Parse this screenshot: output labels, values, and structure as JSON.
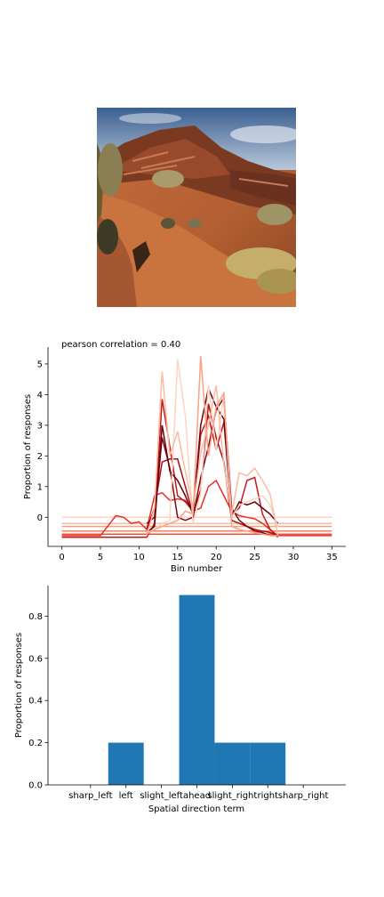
{
  "photo": {
    "subject": "desert-landscape"
  },
  "chart_data": [
    {
      "type": "line",
      "title": "pearson correlation = 0.40",
      "xlabel": "Bin number",
      "ylabel": "Proportion of responses",
      "xlim": [
        -1.8,
        36.8
      ],
      "ylim": [
        -0.95,
        5.55
      ],
      "xticks": [
        0,
        5,
        10,
        15,
        20,
        25,
        30,
        35
      ],
      "yticks": [
        0,
        1,
        2,
        3,
        4,
        5
      ],
      "grid": false,
      "colormap": "Reds",
      "series_colors": [
        "#fdd4c2",
        "#fcbba1",
        "#fca082",
        "#fb8060",
        "#f44f39",
        "#e32f27",
        "#c8171c",
        "#a50f15",
        "#820711",
        "#67000d"
      ],
      "series": [
        {
          "x": [
            0,
            35
          ],
          "y": [
            0,
            0
          ]
        },
        {
          "x": [
            0,
            35
          ],
          "y": [
            -0.2,
            -0.2
          ]
        },
        {
          "x": [
            0,
            35
          ],
          "y": [
            -0.3,
            -0.3
          ]
        },
        {
          "x": [
            0,
            35
          ],
          "y": [
            -0.45,
            -0.45
          ]
        },
        {
          "x": [
            0,
            35
          ],
          "y": [
            -0.55,
            -0.55
          ]
        },
        {
          "x": [
            0,
            5,
            7,
            8,
            9,
            10,
            11,
            12,
            13,
            14,
            15,
            16,
            17,
            18,
            19,
            20,
            21,
            22,
            23,
            24,
            25,
            26,
            27,
            28,
            35
          ],
          "y": [
            -0.6,
            -0.6,
            0.05,
            0.0,
            -0.2,
            -0.15,
            -0.4,
            0.7,
            0.8,
            0.55,
            0.6,
            0.55,
            0.2,
            0.3,
            1.0,
            1.2,
            0.7,
            0.2,
            0.05,
            0.0,
            -0.05,
            -0.2,
            -0.4,
            -0.6,
            -0.6
          ]
        },
        {
          "x": [
            0,
            11,
            12,
            13,
            14,
            15,
            16,
            17,
            18,
            19,
            20,
            21,
            22,
            23,
            24,
            25,
            26,
            27,
            28
          ],
          "y": [
            -0.65,
            -0.65,
            -0.2,
            3.85,
            2.3,
            0.7,
            0.5,
            0.2,
            2.7,
            3.3,
            2.2,
            3.1,
            0.1,
            0.3,
            1.2,
            1.3,
            0.1,
            -0.4,
            -0.65
          ]
        },
        {
          "x": [
            11,
            12,
            13,
            14,
            15,
            16,
            17,
            18,
            19,
            20,
            21,
            22,
            23,
            24,
            25,
            26,
            27,
            28
          ],
          "y": [
            -0.4,
            0.3,
            1.8,
            1.9,
            1.9,
            1.0,
            0.1,
            0.9,
            3.7,
            2.6,
            1.8,
            -0.1,
            -0.2,
            -0.3,
            -0.4,
            -0.45,
            -0.5,
            -0.6
          ]
        },
        {
          "x": [
            11,
            12,
            13,
            14,
            15,
            16,
            17,
            18,
            19,
            20,
            21,
            22,
            23,
            24,
            25,
            26,
            27,
            28
          ],
          "y": [
            -0.2,
            0.0,
            2.6,
            1.6,
            0.0,
            -0.1,
            0.0,
            1.3,
            2.3,
            3.5,
            3.9,
            0.3,
            -0.1,
            -0.3,
            -0.45,
            -0.5,
            -0.6,
            -0.6
          ]
        },
        {
          "x": [
            11,
            12,
            13,
            14,
            15,
            16,
            17,
            18,
            19,
            20,
            21,
            22,
            23,
            24,
            25,
            26,
            27,
            28
          ],
          "y": [
            -0.5,
            -0.3,
            3.0,
            1.5,
            1.2,
            0.7,
            0.1,
            3.0,
            4.2,
            3.6,
            3.2,
            0.0,
            0.5,
            0.4,
            0.5,
            0.3,
            0.1,
            -0.2
          ]
        },
        {
          "x": [
            11,
            12,
            13,
            14,
            15,
            16,
            17,
            18,
            19,
            20,
            21,
            22,
            23,
            24,
            25,
            26,
            27,
            28
          ],
          "y": [
            -0.5,
            -0.4,
            -0.2,
            -0.1,
            5.15,
            3.3,
            -0.2,
            0.8,
            4.3,
            2.2,
            4.0,
            0.0,
            0.4,
            0.5,
            0.6,
            0.7,
            0.4,
            -0.3
          ]
        },
        {
          "x": [
            11,
            12,
            13,
            14,
            15,
            16,
            17,
            18,
            19,
            20,
            21,
            22,
            23,
            24,
            25,
            26,
            27,
            28
          ],
          "y": [
            -0.6,
            0.3,
            4.75,
            2.0,
            2.8,
            1.5,
            0.3,
            2.1,
            3.0,
            4.3,
            1.7,
            0.1,
            1.45,
            1.35,
            1.6,
            1.2,
            0.75,
            -0.6
          ]
        },
        {
          "x": [
            11,
            12,
            13,
            14,
            15,
            16,
            17,
            18,
            19,
            20,
            21,
            22,
            23,
            24,
            25,
            26,
            27,
            28
          ],
          "y": [
            -0.55,
            -0.4,
            -0.3,
            -0.2,
            -0.1,
            0.2,
            0.1,
            5.25,
            2.0,
            3.6,
            4.05,
            -0.3,
            -0.4,
            -0.45,
            -0.5,
            -0.55,
            -0.6,
            -0.6
          ]
        }
      ]
    },
    {
      "type": "bar",
      "title": "",
      "xlabel": "Spatial direction term",
      "ylabel": "Proportion of responses",
      "categories": [
        "sharp_left",
        "left",
        "slight_left",
        "ahead",
        "slight_right",
        "right",
        "sharp_right"
      ],
      "values": [
        0.0,
        0.2,
        0.0,
        0.9,
        0.2,
        0.2,
        0.0
      ],
      "ylim": [
        0,
        0.945
      ],
      "yticks": [
        0.0,
        0.2,
        0.4,
        0.6,
        0.8
      ],
      "ytick_labels": [
        "0.0",
        "0.2",
        "0.4",
        "0.6",
        "0.8"
      ],
      "bar_color": "#1f77b4",
      "grid": false
    }
  ]
}
